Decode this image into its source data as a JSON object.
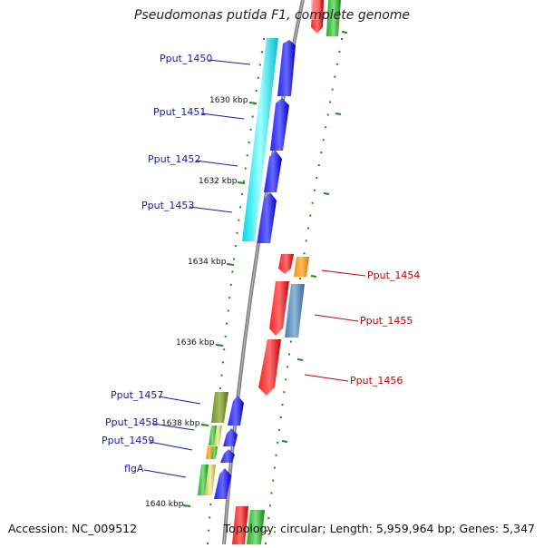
{
  "title": "Pseudomonas putida F1, complete genome",
  "footer": {
    "accession": "Accession: NC_009512",
    "topology": "Topology: circular; Length: 5,959,964 bp; Genes: 5,347"
  },
  "ticks": [
    "1630 kbp",
    "1632 kbp",
    "1634 kbp",
    "1636 kbp",
    "1638 kbp",
    "1640 kbp"
  ],
  "genes": {
    "g1450": "Pput_1450",
    "g1451": "Pput_1451",
    "g1452": "Pput_1452",
    "g1453": "Pput_1453",
    "g1454": "Pput_1454",
    "g1455": "Pput_1455",
    "g1456": "Pput_1456",
    "g1457": "Pput_1457",
    "g1458": "Pput_1458",
    "g1459": "Pput_1459",
    "flgA": "flgA"
  },
  "colors": {
    "cds_forward": "#0000ee",
    "cds_reverse": "#ee0000",
    "cog_cyan": "#00e5ee",
    "cog_orange": "#ff8800",
    "cog_steel": "#4a7fb5",
    "cog_olive": "#6b8e23",
    "cog_green": "#22aa22",
    "backbone": "#808080",
    "gc_dots": "#1a8a1a",
    "label_forward": "#1a1aa8",
    "label_reverse": "#c80000"
  }
}
